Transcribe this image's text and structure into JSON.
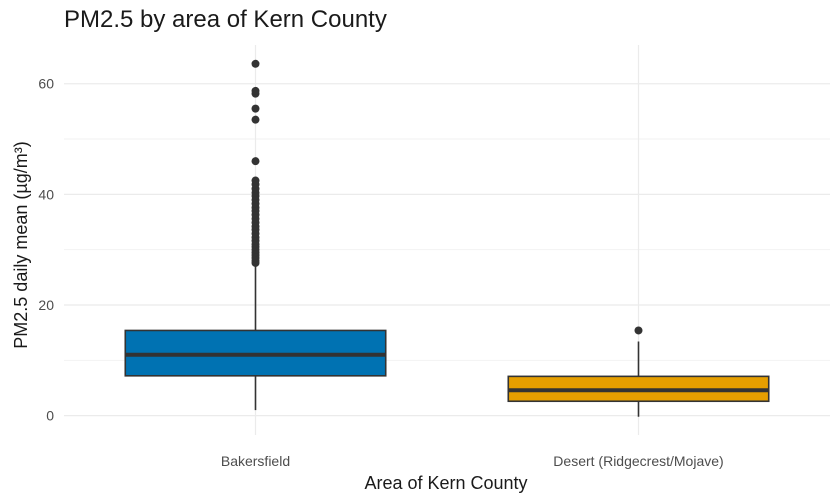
{
  "chart_data": {
    "type": "box",
    "title": "PM2.5 by area of Kern County",
    "xlabel": "Area of Kern County",
    "ylabel": "PM2.5 daily mean (µg/m³)",
    "ylim": [
      -3.5,
      67
    ],
    "y_ticks": [
      0,
      20,
      40,
      60
    ],
    "grid": true,
    "legend": "none",
    "categories": [
      "Bakersfield",
      "Desert (Ridgecrest/Mojave)"
    ],
    "series": [
      {
        "category": "Bakersfield",
        "color": "#0072B2",
        "whisker_low": 1.0,
        "q1": 7.2,
        "median": 11.0,
        "q3": 15.4,
        "whisker_high": 27.3,
        "outliers": [
          27.6,
          28.0,
          28.5,
          29.0,
          29.5,
          30.0,
          30.5,
          31.0,
          31.6,
          32.2,
          32.9,
          33.6,
          34.2,
          34.9,
          35.6,
          36.3,
          37.0,
          37.6,
          38.3,
          39.0,
          39.7,
          40.3,
          41.0,
          41.8,
          42.5,
          46.0,
          53.5,
          55.5,
          58.2,
          58.7,
          63.6
        ]
      },
      {
        "category": "Desert (Ridgecrest/Mojave)",
        "color": "#E69F00",
        "whisker_low": -0.2,
        "q1": 2.6,
        "median": 4.6,
        "q3": 7.1,
        "whisker_high": 13.4,
        "outliers": [
          15.4
        ]
      }
    ]
  }
}
